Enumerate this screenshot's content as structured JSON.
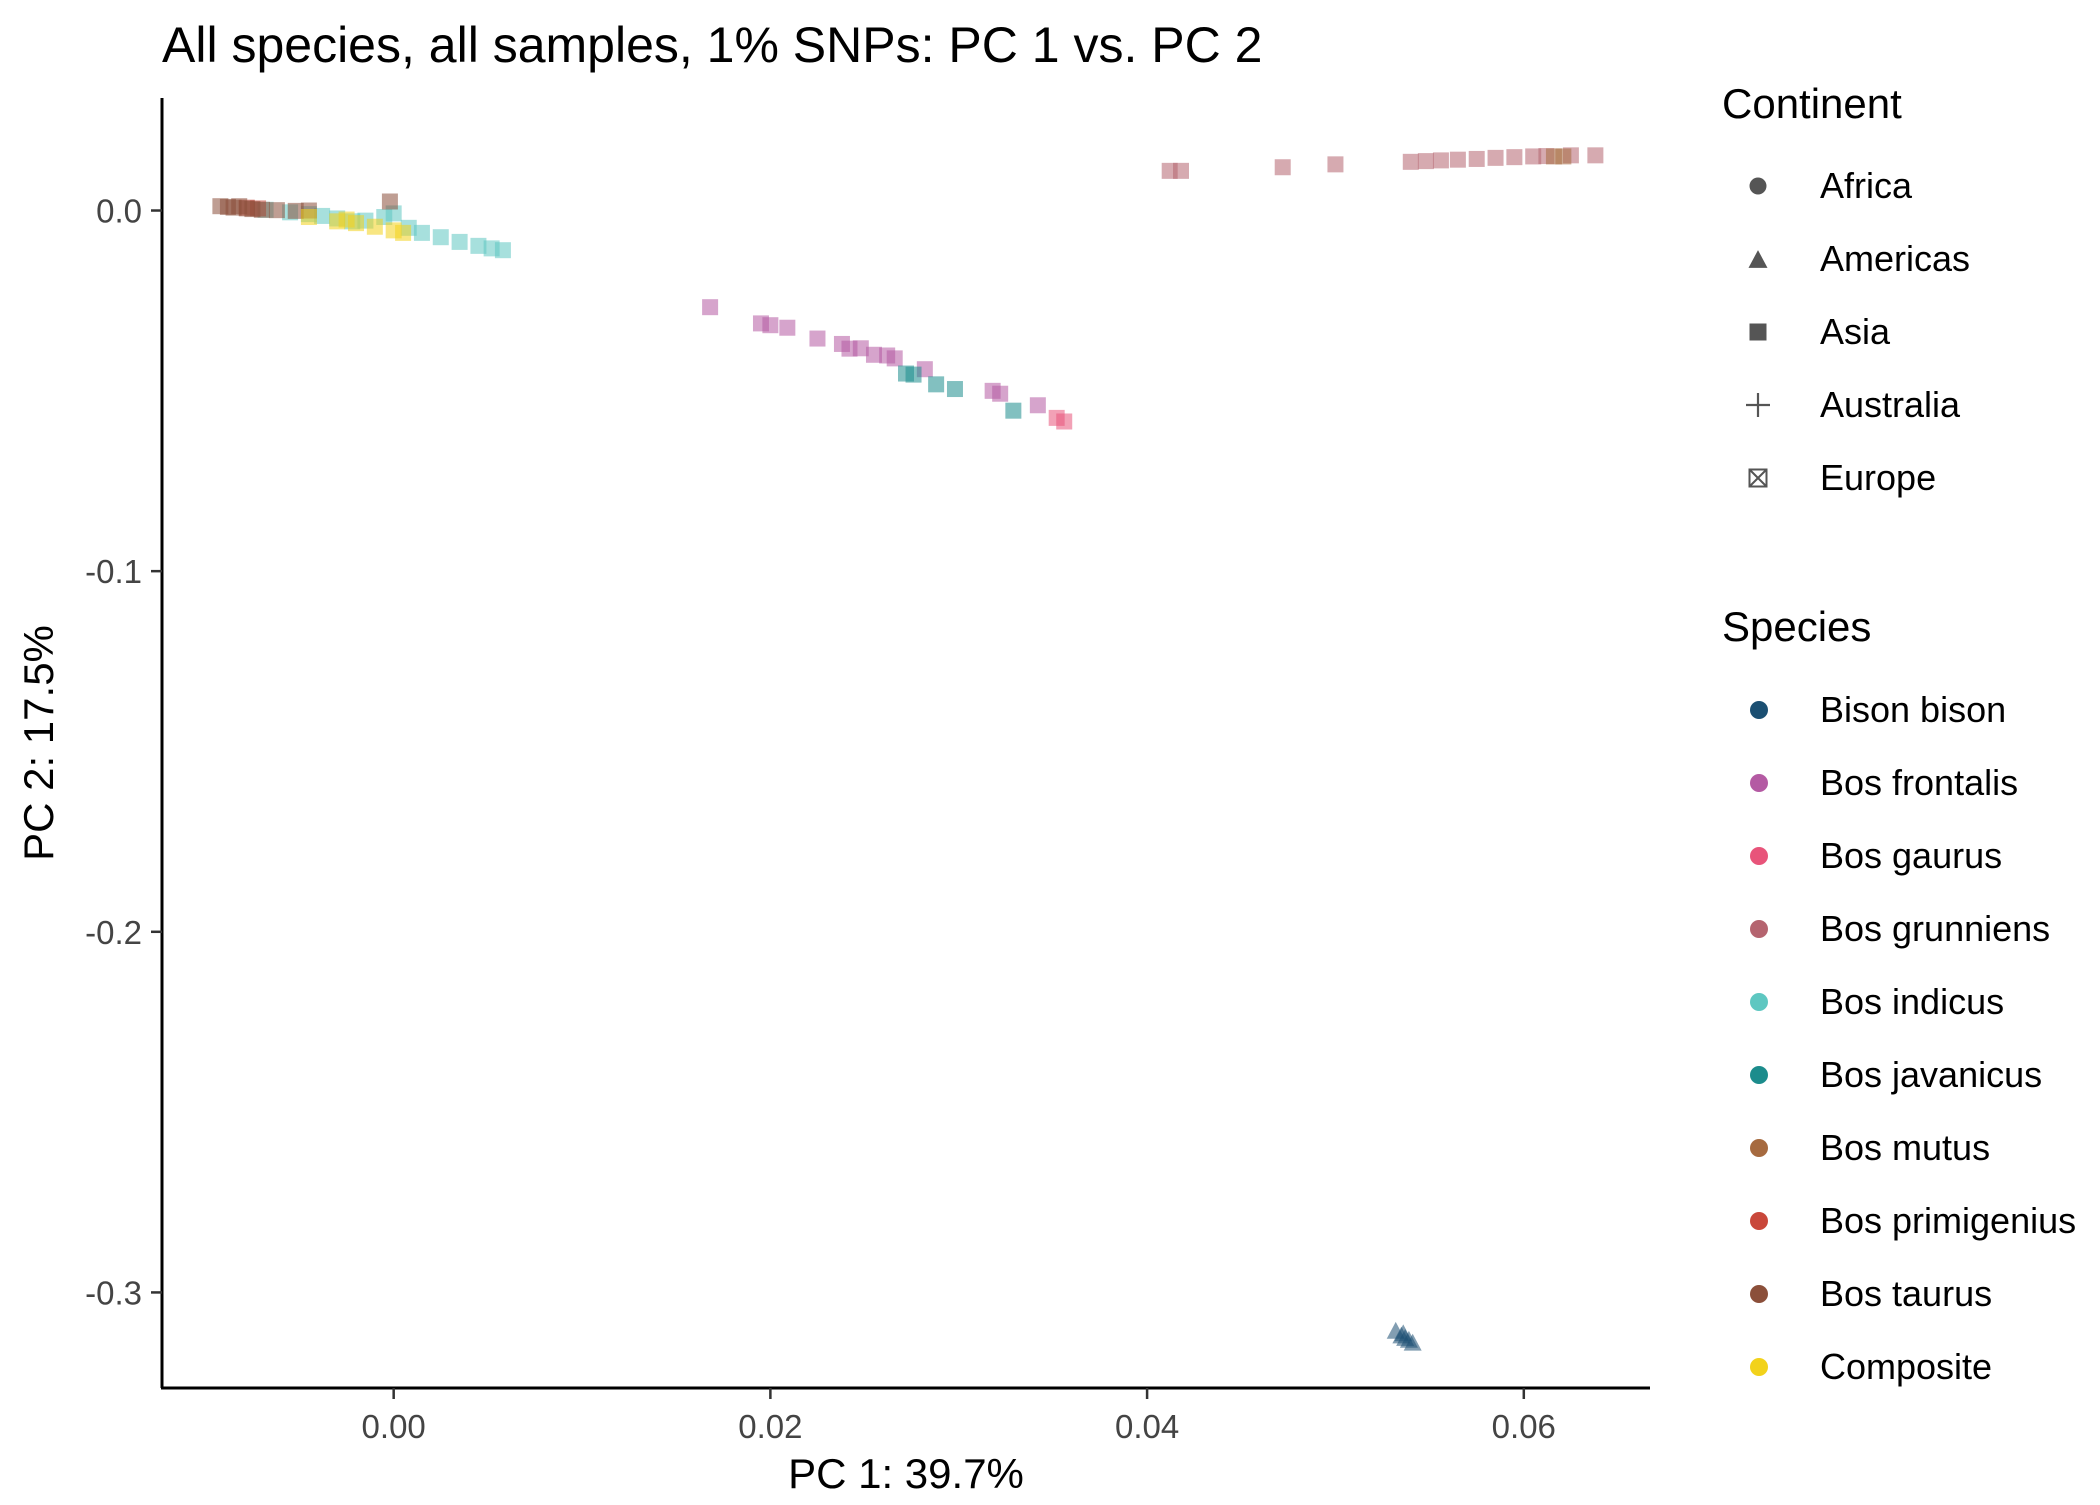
{
  "chart_data": {
    "type": "scatter",
    "title": "All species, all samples, 1% SNPs: PC 1 vs. PC 2",
    "xlabel": "PC 1: 39.7%",
    "ylabel": "PC 2: 17.5%",
    "xlim": [
      -0.0123,
      0.0667
    ],
    "ylim": [
      -0.3265,
      0.0312
    ],
    "x_ticks": [
      0.0,
      0.02,
      0.04,
      0.06
    ],
    "x_tick_labels": [
      "0.00",
      "0.02",
      "0.04",
      "0.06"
    ],
    "y_ticks": [
      0.0,
      -0.1,
      -0.2,
      -0.3
    ],
    "y_tick_labels": [
      "0.0",
      "-0.1",
      "-0.2",
      "-0.3"
    ],
    "grid": false,
    "legend_placement": "right",
    "continent_legend": {
      "title": "Continent",
      "items": [
        {
          "label": "Africa",
          "shape": "circle"
        },
        {
          "label": "Americas",
          "shape": "triangle"
        },
        {
          "label": "Asia",
          "shape": "square"
        },
        {
          "label": "Australia",
          "shape": "plus"
        },
        {
          "label": "Europe",
          "shape": "boxed-x"
        }
      ]
    },
    "species_legend": {
      "title": "Species",
      "items": [
        {
          "label": "Bison bison",
          "color": "#1b4f72"
        },
        {
          "label": "Bos frontalis",
          "color": "#b45aa3"
        },
        {
          "label": "Bos gaurus",
          "color": "#e8547a"
        },
        {
          "label": "Bos grunniens",
          "color": "#b5646f"
        },
        {
          "label": "Bos indicus",
          "color": "#5ec7c1"
        },
        {
          "label": "Bos javanicus",
          "color": "#1c8c8c"
        },
        {
          "label": "Bos mutus",
          "color": "#a66a3f"
        },
        {
          "label": "Bos primigenius",
          "color": "#c9473a"
        },
        {
          "label": "Bos taurus",
          "color": "#8b4f3a"
        },
        {
          "label": "Composite",
          "color": "#f2d21b"
        }
      ]
    },
    "series": [
      {
        "name": "Bison bison",
        "color": "#1b4f72",
        "shape": "triangle",
        "points": [
          [
            0.0532,
            -0.3105
          ],
          [
            0.0535,
            -0.3118
          ],
          [
            0.0537,
            -0.3125
          ],
          [
            0.0539,
            -0.313
          ],
          [
            0.0541,
            -0.3138
          ],
          [
            0.0536,
            -0.3112
          ]
        ]
      },
      {
        "name": "Bos frontalis",
        "color": "#b45aa3",
        "shape": "square",
        "points": [
          [
            0.0168,
            -0.0268
          ],
          [
            0.0195,
            -0.0313
          ],
          [
            0.02,
            -0.0318
          ],
          [
            0.0209,
            -0.0325
          ],
          [
            0.0225,
            -0.0355
          ],
          [
            0.0238,
            -0.037
          ],
          [
            0.0242,
            -0.0383
          ],
          [
            0.0248,
            -0.0382
          ],
          [
            0.0255,
            -0.04
          ],
          [
            0.0262,
            -0.0402
          ],
          [
            0.0266,
            -0.041
          ],
          [
            0.0282,
            -0.044
          ],
          [
            0.0318,
            -0.05
          ],
          [
            0.0322,
            -0.0508
          ],
          [
            0.0342,
            -0.054
          ]
        ]
      },
      {
        "name": "Bos gaurus",
        "color": "#e8547a",
        "shape": "square",
        "points": [
          [
            0.0352,
            -0.0575
          ],
          [
            0.0356,
            -0.0585
          ]
        ]
      },
      {
        "name": "Bos grunniens",
        "color": "#b5646f",
        "shape": "square",
        "points": [
          [
            0.0412,
            0.011
          ],
          [
            0.0418,
            0.011
          ],
          [
            0.0472,
            0.012
          ],
          [
            0.05,
            0.0128
          ],
          [
            0.054,
            0.0135
          ],
          [
            0.0548,
            0.0137
          ],
          [
            0.0556,
            0.0139
          ],
          [
            0.0565,
            0.0141
          ],
          [
            0.0575,
            0.0143
          ],
          [
            0.0585,
            0.0146
          ],
          [
            0.0595,
            0.0148
          ],
          [
            0.0605,
            0.015
          ],
          [
            0.0612,
            0.0151
          ],
          [
            0.0625,
            0.0153
          ],
          [
            0.0638,
            0.0153
          ]
        ]
      },
      {
        "name": "Bos indicus",
        "color": "#5ec7c1",
        "shape": "square",
        "points": [
          [
            -0.0068,
            0.0002
          ],
          [
            -0.0055,
            -0.0005
          ],
          [
            -0.0045,
            -0.001
          ],
          [
            -0.0038,
            -0.0015
          ],
          [
            -0.003,
            -0.0022
          ],
          [
            -0.0022,
            -0.003
          ],
          [
            -0.0015,
            -0.0028
          ],
          [
            -0.0005,
            -0.0018
          ],
          [
            0.0,
            -0.0008
          ],
          [
            0.0008,
            -0.0048
          ],
          [
            0.0015,
            -0.0062
          ],
          [
            0.0025,
            -0.0074
          ],
          [
            0.0035,
            -0.0087
          ],
          [
            0.0045,
            -0.0098
          ],
          [
            0.0052,
            -0.0105
          ],
          [
            0.0058,
            -0.011
          ]
        ]
      },
      {
        "name": "Bos javanicus",
        "color": "#1c8c8c",
        "shape": "square",
        "points": [
          [
            0.0272,
            -0.0452
          ],
          [
            0.0276,
            -0.0455
          ],
          [
            0.0288,
            -0.0482
          ],
          [
            0.0298,
            -0.0495
          ],
          [
            0.0329,
            -0.0555
          ]
        ]
      },
      {
        "name": "Bos mutus",
        "color": "#a66a3f",
        "shape": "square",
        "points": [
          [
            0.0616,
            0.015
          ],
          [
            0.0621,
            0.015
          ]
        ]
      },
      {
        "name": "Bos primigenius",
        "color": "#c9473a",
        "shape": "square",
        "points": [
          [
            -0.0078,
            0.0008
          ],
          [
            -0.0072,
            0.0006
          ]
        ]
      },
      {
        "name": "Bos taurus",
        "color": "#8b4f3a",
        "shape": "square",
        "points": [
          [
            -0.0092,
            0.0012
          ],
          [
            -0.0088,
            0.001
          ],
          [
            -0.0085,
            0.0008
          ],
          [
            -0.0082,
            0.0012
          ],
          [
            -0.0078,
            0.0006
          ],
          [
            -0.0075,
            0.0004
          ],
          [
            -0.007,
            0.0002
          ],
          [
            -0.0062,
            0.0001
          ],
          [
            -0.0052,
            -0.0001
          ],
          [
            -0.0045,
            0.0
          ],
          [
            -0.0002,
            0.0025
          ]
        ]
      },
      {
        "name": "Composite",
        "color": "#f2d21b",
        "shape": "square",
        "points": [
          [
            -0.0045,
            -0.0018
          ],
          [
            -0.003,
            -0.003
          ],
          [
            -0.002,
            -0.0035
          ],
          [
            -0.001,
            -0.0045
          ],
          [
            0.0,
            -0.0055
          ],
          [
            0.0005,
            -0.0062
          ],
          [
            -0.0025,
            -0.0025
          ]
        ]
      }
    ]
  }
}
